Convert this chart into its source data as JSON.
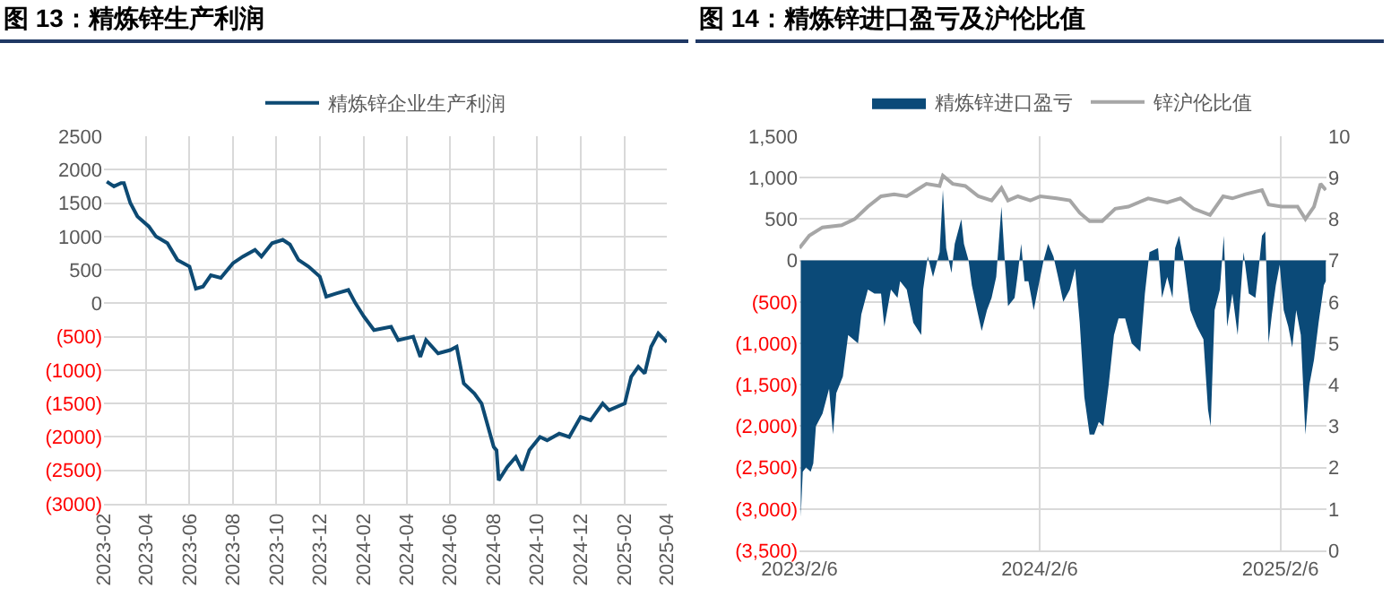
{
  "chart_data": [
    {
      "type": "line",
      "title": "图 13：精炼锌生产利润",
      "legend": "top",
      "grid": true,
      "line_style": "solid",
      "marker": "none",
      "xlim": [
        "2023-02-01",
        "2025-04-01"
      ],
      "xticks": [
        "2023-02",
        "2023-04",
        "2023-06",
        "2023-08",
        "2023-10",
        "2023-12",
        "2024-02",
        "2024-04",
        "2024-06",
        "2024-08",
        "2024-10",
        "2024-12",
        "2025-02",
        "2025-04"
      ],
      "ylim": [
        -3000,
        2500
      ],
      "yticks": [
        2500,
        2000,
        1500,
        1000,
        500,
        0,
        {
          "value": -500,
          "label": "(500)"
        },
        {
          "value": -1000,
          "label": "(1000)"
        },
        {
          "value": -1500,
          "label": "(1500)"
        },
        {
          "value": -2000,
          "label": "(2000)"
        },
        {
          "value": -2500,
          "label": "(2500)"
        },
        {
          "value": -3000,
          "label": "(3000)"
        }
      ],
      "x": [
        "2023-02-05",
        "2023-02-15",
        "2023-02-25",
        "2023-03-01",
        "2023-03-10",
        "2023-03-20",
        "2023-04-05",
        "2023-04-15",
        "2023-05-01",
        "2023-05-15",
        "2023-06-01",
        "2023-06-10",
        "2023-06-20",
        "2023-07-01",
        "2023-07-15",
        "2023-08-01",
        "2023-08-15",
        "2023-09-01",
        "2023-09-10",
        "2023-09-25",
        "2023-10-10",
        "2023-10-20",
        "2023-11-01",
        "2023-11-15",
        "2023-12-01",
        "2023-12-10",
        "2023-12-25",
        "2024-01-10",
        "2024-01-20",
        "2024-02-01",
        "2024-02-15",
        "2024-03-10",
        "2024-03-20",
        "2024-04-10",
        "2024-04-20",
        "2024-04-28",
        "2024-05-15",
        "2024-06-01",
        "2024-06-10",
        "2024-06-20",
        "2024-07-05",
        "2024-07-15",
        "2024-08-01",
        "2024-08-05",
        "2024-08-08",
        "2024-08-20",
        "2024-09-01",
        "2024-09-10",
        "2024-09-20",
        "2024-10-05",
        "2024-10-15",
        "2024-11-01",
        "2024-11-15",
        "2024-12-01",
        "2024-12-15",
        "2025-01-01",
        "2025-01-10",
        "2025-02-01",
        "2025-02-10",
        "2025-02-20",
        "2025-03-01",
        "2025-03-10",
        "2025-03-20",
        "2025-04-01"
      ],
      "series": [
        {
          "name": "精炼锌企业生产利润",
          "color": "#0d4a73",
          "values": [
            1820,
            1750,
            1800,
            1800,
            1500,
            1300,
            1150,
            1000,
            900,
            650,
            550,
            220,
            250,
            420,
            380,
            600,
            700,
            800,
            700,
            900,
            950,
            880,
            650,
            550,
            400,
            100,
            150,
            200,
            0,
            -200,
            -400,
            -350,
            -550,
            -500,
            -800,
            -550,
            -750,
            -700,
            -650,
            -1200,
            -1350,
            -1500,
            -2150,
            -2200,
            -2650,
            -2450,
            -2300,
            -2500,
            -2200,
            -2000,
            -2050,
            -1950,
            -2000,
            -1700,
            -1750,
            -1500,
            -1600,
            -1500,
            -1100,
            -950,
            -1050,
            -650,
            -450,
            -580
          ]
        }
      ]
    },
    {
      "type": "area",
      "title": "图 14：精炼锌进口盈亏及沪伦比值",
      "legend": "top",
      "grid": true,
      "xlim": [
        "2023-02-06",
        "2025-04-17"
      ],
      "xticks": [
        {
          "value": "2023-02-06",
          "label": "2023/2/6"
        },
        {
          "value": "2024-02-06",
          "label": "2024/2/6"
        },
        {
          "value": "2025-02-06",
          "label": "2025/2/6"
        }
      ],
      "ylim": [
        -3500,
        1500
      ],
      "yticks": [
        {
          "value": 1500,
          "label": "1,500"
        },
        {
          "value": 1000,
          "label": "1,000"
        },
        500,
        0,
        {
          "value": -500,
          "label": "(500)"
        },
        {
          "value": -1000,
          "label": "(1,000)"
        },
        {
          "value": -1500,
          "label": "(1,500)"
        },
        {
          "value": -2000,
          "label": "(2,000)"
        },
        {
          "value": -2500,
          "label": "(2,500)"
        },
        {
          "value": -3000,
          "label": "(3,000)"
        },
        {
          "value": -3500,
          "label": "(3,500)"
        }
      ],
      "y2lim": [
        0,
        10
      ],
      "y2ticks": [
        0,
        1,
        2,
        3,
        4,
        5,
        6,
        7,
        8,
        9,
        10
      ],
      "series": [
        {
          "name": "精炼锌进口盈亏",
          "color": "#0b4a78",
          "x": [
            "2023-02-08",
            "2023-02-11",
            "2023-02-16",
            "2023-02-23",
            "2023-02-27",
            "2023-03-03",
            "2023-03-13",
            "2023-03-23",
            "2023-03-29",
            "2023-04-03",
            "2023-04-13",
            "2023-04-21",
            "2023-05-06",
            "2023-05-11",
            "2023-05-21",
            "2023-05-31",
            "2023-06-10",
            "2023-06-15",
            "2023-06-25",
            "2023-07-05",
            "2023-07-09",
            "2023-07-19",
            "2023-07-29",
            "2023-08-10",
            "2023-08-13",
            "2023-08-20",
            "2023-08-28",
            "2023-09-07",
            "2023-09-12",
            "2023-09-17",
            "2023-09-25",
            "2023-09-30",
            "2023-10-10",
            "2023-10-14",
            "2023-10-21",
            "2023-10-26",
            "2023-11-03",
            "2023-11-10",
            "2023-11-18",
            "2023-11-25",
            "2023-12-02",
            "2023-12-10",
            "2023-12-15",
            "2023-12-20",
            "2023-12-30",
            "2024-01-04",
            "2024-01-09",
            "2024-01-14",
            "2024-01-20",
            "2024-01-28",
            "2024-02-02",
            "2024-02-12",
            "2024-02-19",
            "2024-02-27",
            "2024-03-05",
            "2024-03-13",
            "2024-03-23",
            "2024-03-31",
            "2024-04-07",
            "2024-04-14",
            "2024-04-22",
            "2024-04-29",
            "2024-05-06",
            "2024-05-13",
            "2024-05-21",
            "2024-05-29",
            "2024-06-05",
            "2024-06-15",
            "2024-06-25",
            "2024-07-08",
            "2024-07-15",
            "2024-07-22",
            "2024-08-04",
            "2024-08-10",
            "2024-08-18",
            "2024-08-26",
            "2024-08-30",
            "2024-09-05",
            "2024-09-12",
            "2024-09-22",
            "2024-10-02",
            "2024-10-12",
            "2024-10-19",
            "2024-10-23",
            "2024-10-29",
            "2024-11-06",
            "2024-11-12",
            "2024-11-17",
            "2024-11-25",
            "2024-12-03",
            "2024-12-12",
            "2024-12-20",
            "2024-12-30",
            "2025-01-04",
            "2025-01-09",
            "2025-01-14",
            "2025-01-19",
            "2025-01-24",
            "2025-01-30",
            "2025-02-05",
            "2025-02-11",
            "2025-02-18",
            "2025-02-24",
            "2025-03-02",
            "2025-03-09",
            "2025-03-16",
            "2025-03-22",
            "2025-03-29",
            "2025-04-05",
            "2025-04-13",
            "2025-04-16"
          ],
          "values": [
            -3100,
            -2550,
            -2500,
            -2550,
            -2450,
            -2000,
            -1850,
            -1550,
            -2100,
            -1600,
            -1400,
            -900,
            -1000,
            -650,
            -350,
            -400,
            -400,
            -800,
            -350,
            -450,
            -250,
            -350,
            -750,
            -900,
            -350,
            50,
            -200,
            100,
            850,
            150,
            -150,
            200,
            500,
            200,
            0,
            -300,
            -600,
            -850,
            -600,
            -450,
            -200,
            650,
            0,
            -550,
            -450,
            -150,
            200,
            -250,
            -250,
            -600,
            -400,
            0,
            200,
            50,
            -200,
            -500,
            -350,
            -100,
            -750,
            -1650,
            -2100,
            -2100,
            -1950,
            -2000,
            -1500,
            -900,
            -700,
            -700,
            -1000,
            -1100,
            -400,
            100,
            150,
            -450,
            -200,
            -450,
            150,
            300,
            0,
            -600,
            -800,
            -950,
            -1800,
            -2000,
            -600,
            -350,
            300,
            -800,
            -400,
            -900,
            100,
            -400,
            -450,
            -100,
            300,
            350,
            -1000,
            -650,
            -300,
            -50,
            -600,
            -800,
            -1050,
            -600,
            -900,
            -2100,
            -1500,
            -1200,
            -750,
            -300,
            -250
          ]
        },
        {
          "name": "锌沪伦比值",
          "type": "line",
          "axis": "y2",
          "color": "#a6a6a6",
          "x": [
            "2023-02-06",
            "2023-02-21",
            "2023-03-13",
            "2023-04-11",
            "2023-05-01",
            "2023-05-21",
            "2023-06-10",
            "2023-06-30",
            "2023-07-19",
            "2023-08-03",
            "2023-08-18",
            "2023-09-07",
            "2023-09-12",
            "2023-09-27",
            "2023-10-16",
            "2023-11-05",
            "2023-11-25",
            "2023-12-10",
            "2023-12-20",
            "2024-01-04",
            "2024-01-23",
            "2024-02-07",
            "2024-03-03",
            "2024-03-23",
            "2024-04-07",
            "2024-04-22",
            "2024-05-11",
            "2024-05-31",
            "2024-06-20",
            "2024-07-20",
            "2024-08-18",
            "2024-09-07",
            "2024-09-27",
            "2024-10-22",
            "2024-11-11",
            "2024-11-25",
            "2024-12-15",
            "2025-01-09",
            "2025-01-19",
            "2025-02-08",
            "2025-03-04",
            "2025-03-16",
            "2025-03-29",
            "2025-04-08",
            "2025-04-16"
          ],
          "values": [
            7.3,
            7.6,
            7.8,
            7.85,
            8.0,
            8.3,
            8.55,
            8.6,
            8.55,
            8.7,
            8.85,
            8.8,
            9.05,
            8.85,
            8.8,
            8.55,
            8.45,
            8.75,
            8.45,
            8.55,
            8.45,
            8.55,
            8.5,
            8.45,
            8.15,
            7.95,
            7.95,
            8.25,
            8.3,
            8.5,
            8.4,
            8.5,
            8.25,
            8.1,
            8.55,
            8.5,
            8.6,
            8.7,
            8.35,
            8.3,
            8.3,
            8.0,
            8.3,
            8.85,
            8.7
          ]
        }
      ]
    }
  ]
}
